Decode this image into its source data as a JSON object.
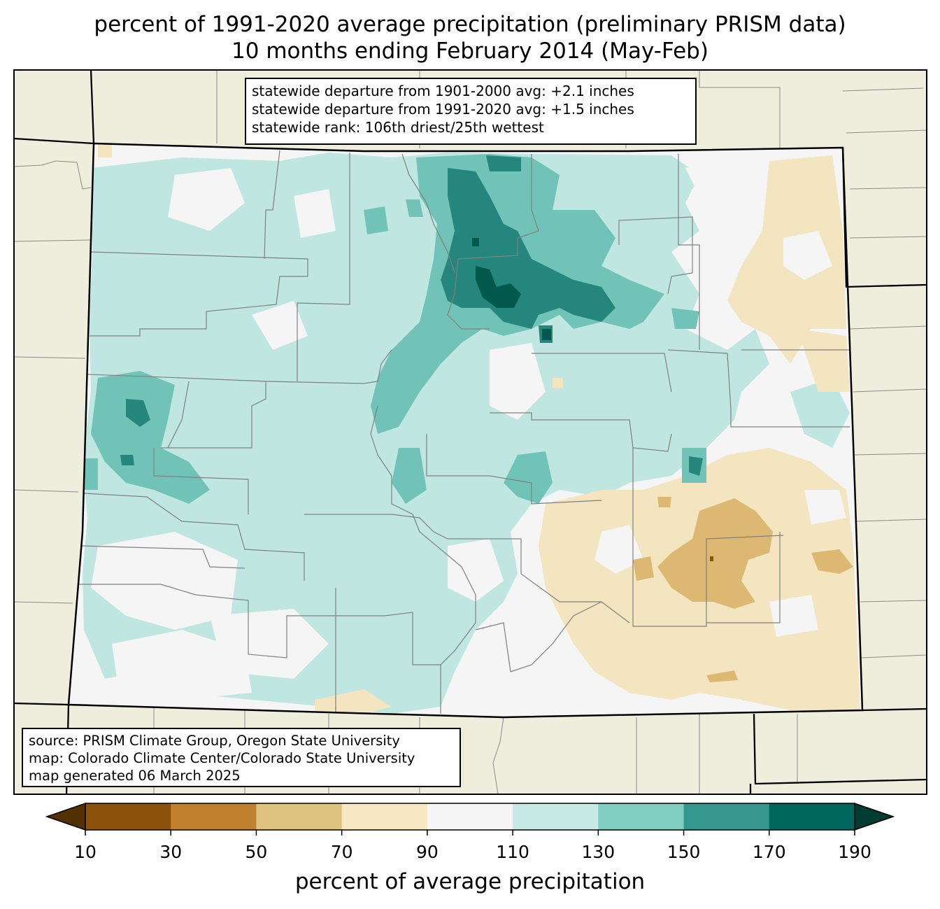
{
  "title": {
    "line1": "percent of 1991-2020 average precipitation (preliminary PRISM data)",
    "line2": "10 months ending February 2014 (May-Feb)"
  },
  "stats_box": {
    "line1": "statewide departure from 1901-2000 avg: +2.1 inches",
    "line2": "statewide departure from 1991-2020 avg: +1.5 inches",
    "line3": "statewide rank: 106th driest/25th wettest"
  },
  "source_box": {
    "line1": "source: PRISM Climate Group, Oregon State University",
    "line2": "map: Colorado Climate Center/Colorado State University",
    "line3": "map generated 06 March 2025"
  },
  "colorbar": {
    "label": "percent of average precipitation",
    "ticks": [
      "10",
      "30",
      "50",
      "70",
      "90",
      "110",
      "130",
      "150",
      "170",
      "190"
    ],
    "under_color": "#543005",
    "over_color": "#003c30",
    "bins": [
      {
        "range": "10-30",
        "color": "#8c510a"
      },
      {
        "range": "30-50",
        "color": "#bf812d"
      },
      {
        "range": "50-70",
        "color": "#dfc27d"
      },
      {
        "range": "70-90",
        "color": "#f6e8c3"
      },
      {
        "range": "90-110",
        "color": "#f5f5f5"
      },
      {
        "range": "110-130",
        "color": "#c7eae5"
      },
      {
        "range": "130-150",
        "color": "#80cdc1"
      },
      {
        "range": "150-170",
        "color": "#35978f"
      },
      {
        "range": "170-190",
        "color": "#01665e"
      }
    ]
  },
  "map": {
    "background_color": "#efeddb",
    "state": "Colorado"
  }
}
